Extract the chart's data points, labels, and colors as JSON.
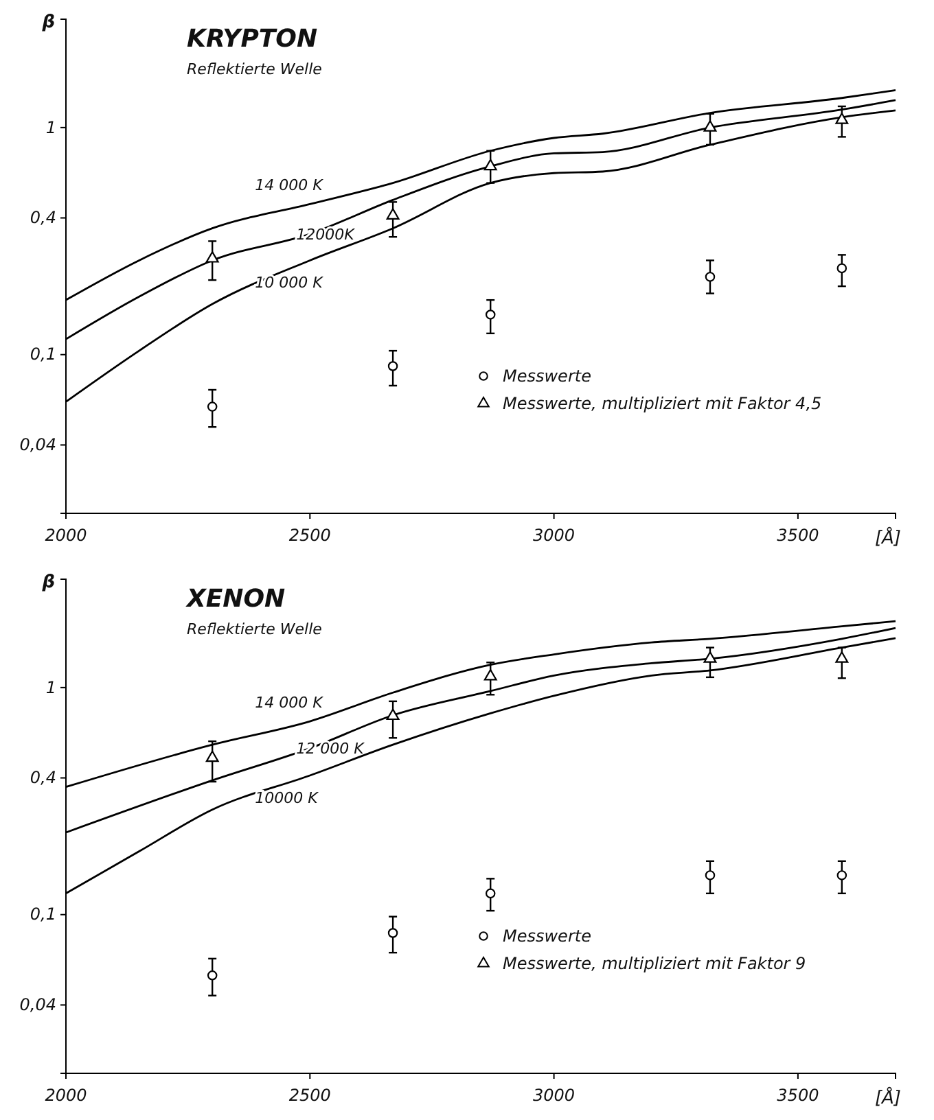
{
  "chart_data": [
    {
      "type": "line",
      "title": "KRYPTON",
      "subtitle": "Reflektierte Welle",
      "xlabel": "[Å]",
      "ylabel": "β",
      "log": "y",
      "legend": "bottom right",
      "xlim": [
        2000,
        3700
      ],
      "ylim": [
        0.02,
        3
      ],
      "xticks": [
        2000,
        2500,
        3000,
        3500
      ],
      "yticks": [
        {
          "value": 0.04,
          "label": "0,04"
        },
        {
          "value": 0.1,
          "label": "0,1"
        },
        {
          "value": 0.4,
          "label": "0,4"
        },
        {
          "value": 1,
          "label": "1"
        }
      ],
      "series": [
        {
          "type": "line",
          "name": "14 000 K",
          "color": "#000000",
          "x": [
            2000,
            2150,
            2300,
            2500,
            2670,
            2870,
            3000,
            3100,
            3320,
            3590,
            3700
          ],
          "values": [
            0.174,
            0.26,
            0.36,
            0.46,
            0.57,
            0.79,
            0.9,
            0.94,
            1.16,
            1.35,
            1.46
          ]
        },
        {
          "type": "line",
          "name": "12000K",
          "color": "#000000",
          "x": [
            2000,
            2150,
            2300,
            2500,
            2670,
            2870,
            3000,
            3100,
            3320,
            3590,
            3700
          ],
          "values": [
            0.117,
            0.18,
            0.26,
            0.34,
            0.48,
            0.675,
            0.77,
            0.78,
            1.0,
            1.2,
            1.32
          ]
        },
        {
          "type": "line",
          "name": "10 000 K",
          "color": "#000000",
          "x": [
            2000,
            2150,
            2300,
            2500,
            2670,
            2870,
            3000,
            3100,
            3320,
            3590,
            3700
          ],
          "values": [
            0.062,
            0.104,
            0.167,
            0.26,
            0.36,
            0.57,
            0.63,
            0.64,
            0.84,
            1.11,
            1.19
          ]
        },
        {
          "type": "scatter",
          "name": "Messwerte",
          "marker": "circle",
          "color": "#000000",
          "x": [
            2300,
            2670,
            2870,
            3320,
            3590
          ],
          "values": [
            0.059,
            0.089,
            0.15,
            0.22,
            0.24
          ],
          "errors": [
            [
              0.048,
              0.07
            ],
            [
              0.073,
              0.104
            ],
            [
              0.124,
              0.174
            ],
            [
              0.186,
              0.26
            ],
            [
              0.2,
              0.275
            ]
          ]
        },
        {
          "type": "scatter",
          "name": "Messwerte, multipliziert mit Faktor 4,5",
          "marker": "triangle",
          "color": "#000000",
          "x": [
            2300,
            2670,
            2870,
            3320,
            3590
          ],
          "values": [
            0.265,
            0.41,
            0.675,
            1.0,
            1.08
          ],
          "errors": [
            [
              0.213,
              0.316
            ],
            [
              0.33,
              0.47
            ],
            [
              0.57,
              0.79
            ],
            [
              0.84,
              1.15
            ],
            [
              0.91,
              1.24
            ]
          ]
        }
      ]
    },
    {
      "type": "line",
      "title": "XENON",
      "subtitle": "Reflektierte Welle",
      "xlabel": "[Å]",
      "ylabel": "β",
      "log": "y",
      "legend": "bottom right",
      "xlim": [
        2000,
        3700
      ],
      "ylim": [
        0.02,
        3
      ],
      "xticks": [
        2000,
        2500,
        3000,
        3500
      ],
      "yticks": [
        {
          "value": 0.04,
          "label": "0,04"
        },
        {
          "value": 0.1,
          "label": "0,1"
        },
        {
          "value": 0.4,
          "label": "0,4"
        },
        {
          "value": 1,
          "label": "1"
        }
      ],
      "series": [
        {
          "type": "line",
          "name": "14 000 K",
          "color": "#000000",
          "x": [
            2000,
            2300,
            2500,
            2670,
            2870,
            3000,
            3200,
            3320,
            3590,
            3700
          ],
          "values": [
            0.365,
            0.56,
            0.71,
            0.95,
            1.26,
            1.4,
            1.58,
            1.64,
            1.86,
            1.96
          ]
        },
        {
          "type": "line",
          "name": "12 000 K",
          "color": "#000000",
          "x": [
            2000,
            2300,
            2500,
            2670,
            2870,
            3000,
            3200,
            3320,
            3590,
            3700
          ],
          "values": [
            0.23,
            0.39,
            0.54,
            0.755,
            0.965,
            1.13,
            1.28,
            1.34,
            1.64,
            1.83
          ]
        },
        {
          "type": "line",
          "name": "10000 K",
          "color": "#000000",
          "x": [
            2000,
            2150,
            2300,
            2500,
            2670,
            2870,
            3000,
            3200,
            3320,
            3590,
            3700
          ],
          "values": [
            0.124,
            0.19,
            0.29,
            0.41,
            0.56,
            0.77,
            0.92,
            1.13,
            1.19,
            1.5,
            1.65
          ]
        },
        {
          "type": "scatter",
          "name": "Messwerte",
          "marker": "circle",
          "color": "#000000",
          "x": [
            2300,
            2670,
            2870,
            3320,
            3590
          ],
          "values": [
            0.054,
            0.083,
            0.124,
            0.149,
            0.149
          ],
          "errors": [
            [
              0.044,
              0.064
            ],
            [
              0.068,
              0.098
            ],
            [
              0.104,
              0.144
            ],
            [
              0.124,
              0.172
            ],
            [
              0.124,
              0.172
            ]
          ]
        },
        {
          "type": "scatter",
          "name": "Messwerte, multipliziert mit Faktor 9",
          "marker": "triangle",
          "color": "#000000",
          "x": [
            2300,
            2670,
            2870,
            3320,
            3590
          ],
          "values": [
            0.49,
            0.75,
            1.12,
            1.34,
            1.34
          ],
          "errors": [
            [
              0.385,
              0.58
            ],
            [
              0.6,
              0.87
            ],
            [
              0.93,
              1.29
            ],
            [
              1.11,
              1.5
            ],
            [
              1.1,
              1.5
            ]
          ]
        }
      ]
    }
  ]
}
